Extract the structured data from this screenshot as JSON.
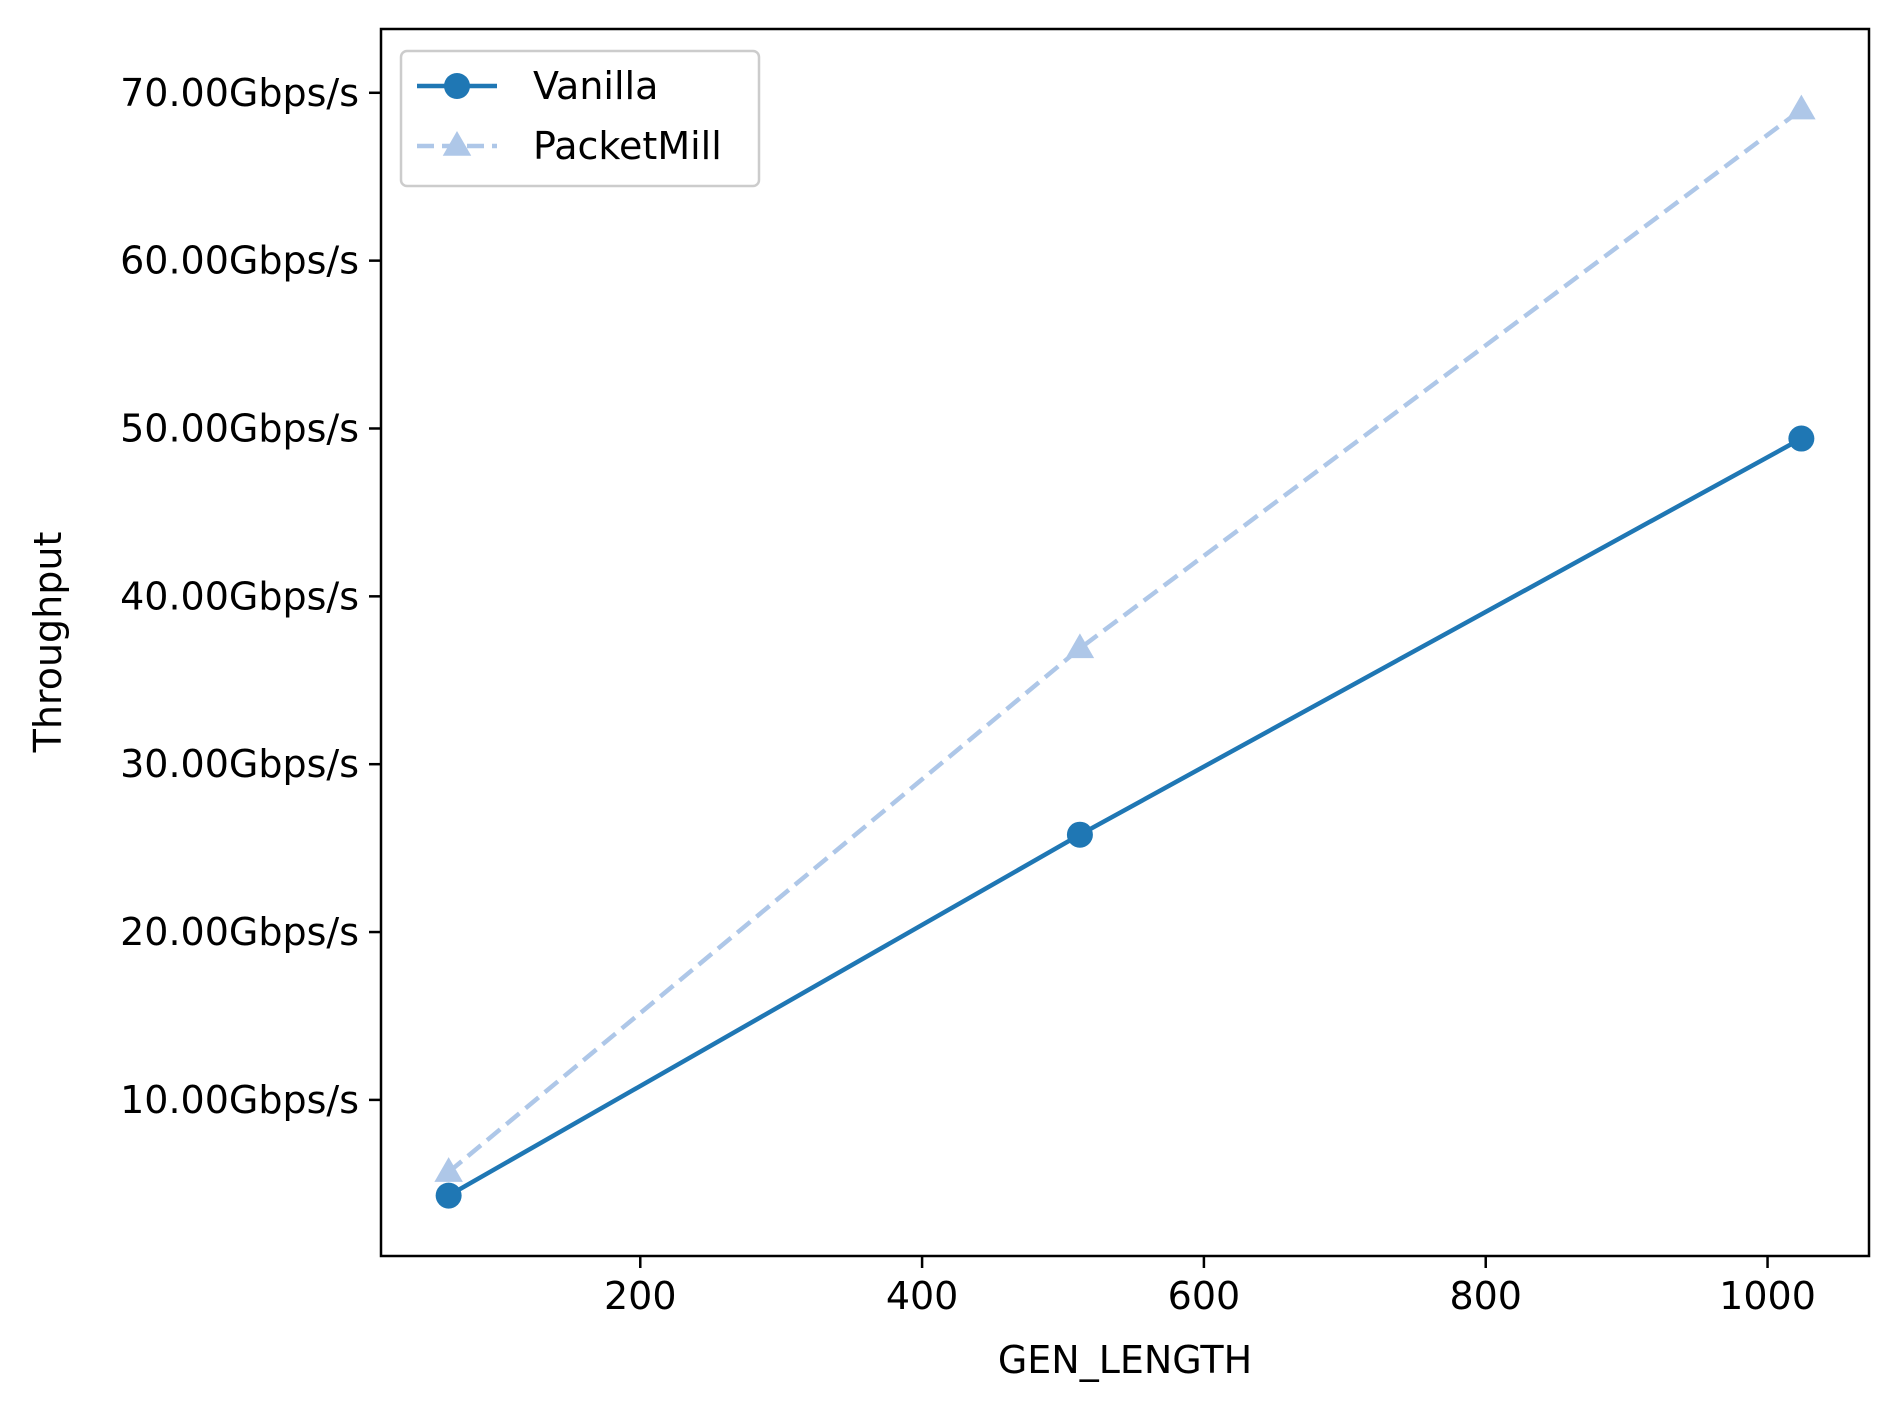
{
  "chart_data": {
    "type": "line",
    "xlabel": "GEN_LENGTH",
    "ylabel": "Throughput",
    "x": [
      64,
      512,
      1024
    ],
    "xlim": [
      16,
      1072
    ],
    "ylim": [
      0.7,
      73.8
    ],
    "x_ticks": [
      200,
      400,
      600,
      800,
      1000
    ],
    "x_tick_labels": [
      "200",
      "400",
      "600",
      "800",
      "1000"
    ],
    "y_ticks": [
      10,
      20,
      30,
      40,
      50,
      60,
      70
    ],
    "y_tick_labels": [
      "10.00Gbps/s",
      "20.00Gbps/s",
      "30.00Gbps/s",
      "40.00Gbps/s",
      "50.00Gbps/s",
      "60.00Gbps/s",
      "70.00Gbps/s"
    ],
    "grid": false,
    "legend_position": "top-left",
    "series": [
      {
        "name": "Vanilla",
        "values": [
          4.3,
          25.8,
          49.4
        ],
        "color": "#1f77b4",
        "marker": "circle",
        "line_style": "solid"
      },
      {
        "name": "PacketMill",
        "values": [
          5.7,
          36.9,
          69.0
        ],
        "color": "#aec7e8",
        "marker": "triangle",
        "line_style": "dashed"
      }
    ]
  }
}
